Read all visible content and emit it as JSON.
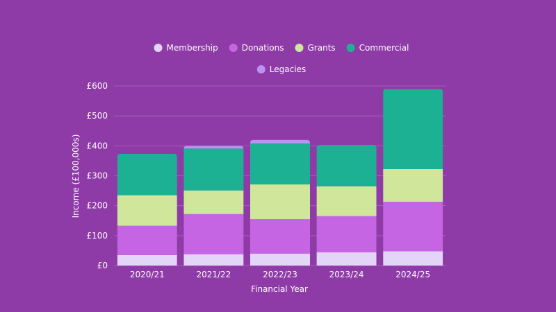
{
  "chart_data": {
    "type": "bar",
    "stacked": true,
    "categories": [
      "2020/21",
      "2021/22",
      "2022/23",
      "2023/24",
      "2024/25"
    ],
    "series": [
      {
        "name": "Membership",
        "color": "#e2d5f8",
        "values": [
          35,
          38,
          40,
          44,
          48
        ]
      },
      {
        "name": "Donations",
        "color": "#c565e3",
        "values": [
          98,
          134,
          115,
          121,
          165
        ]
      },
      {
        "name": "Grants",
        "color": "#d0e69b",
        "values": [
          102,
          79,
          116,
          100,
          109
        ]
      },
      {
        "name": "Commercial",
        "color": "#1db193",
        "values": [
          138,
          140,
          137,
          138,
          268
        ]
      },
      {
        "name": "Legacies",
        "color": "#bb92f0",
        "values": [
          0,
          9,
          12,
          0,
          0
        ]
      }
    ],
    "xlabel": "Financial Year",
    "ylabel": "Income (£100,000s)",
    "ylim": [
      0,
      600
    ],
    "yticks": [
      "£0",
      "£100",
      "£200",
      "£300",
      "£400",
      "£500",
      "£600"
    ],
    "grid": true,
    "legend_position": "top"
  }
}
